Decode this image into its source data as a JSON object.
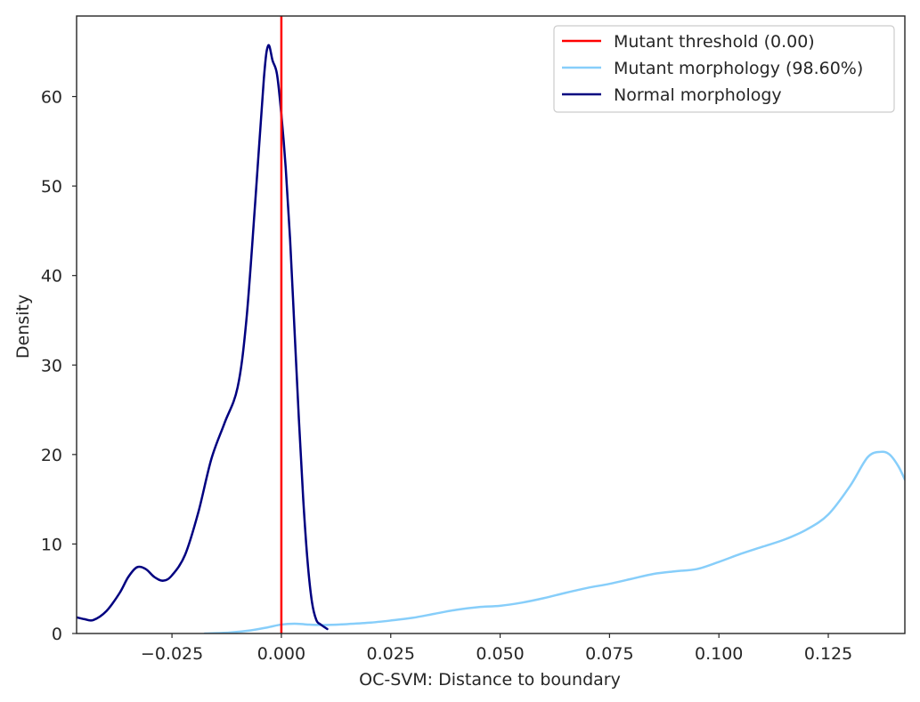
{
  "chart_data": {
    "type": "line",
    "title": "",
    "xlabel": "OC-SVM: Distance to boundary",
    "ylabel": "Density",
    "xlim": [
      -0.0468,
      0.1425
    ],
    "ylim": [
      0,
      69
    ],
    "xticks": [
      -0.025,
      0.0,
      0.025,
      0.05,
      0.075,
      0.1,
      0.125
    ],
    "xtick_labels": [
      "−0.025",
      "0.000",
      "0.025",
      "0.050",
      "0.075",
      "0.100",
      "0.125"
    ],
    "yticks": [
      0,
      10,
      20,
      30,
      40,
      50,
      60
    ],
    "ytick_labels": [
      "0",
      "10",
      "20",
      "30",
      "40",
      "50",
      "60"
    ],
    "grid": false,
    "legend_position": "top-right",
    "threshold": {
      "name": "Mutant threshold (0.00)",
      "x": 0.0,
      "color": "#ff0000"
    },
    "series": [
      {
        "name": "Mutant morphology (98.60%)",
        "color": "#87cefa",
        "x": [
          -0.0175,
          -0.012,
          -0.007,
          -0.003,
          0.0,
          0.003,
          0.006,
          0.01,
          0.015,
          0.02,
          0.025,
          0.03,
          0.035,
          0.04,
          0.045,
          0.05,
          0.055,
          0.06,
          0.065,
          0.07,
          0.075,
          0.08,
          0.085,
          0.09,
          0.095,
          0.1,
          0.105,
          0.11,
          0.115,
          0.12,
          0.125,
          0.13,
          0.134,
          0.137,
          0.139,
          0.141,
          0.1425
        ],
        "y": [
          0.0,
          0.1,
          0.35,
          0.7,
          1.0,
          1.1,
          1.0,
          0.95,
          1.05,
          1.2,
          1.45,
          1.75,
          2.2,
          2.65,
          2.95,
          3.1,
          3.45,
          3.95,
          4.55,
          5.1,
          5.55,
          6.1,
          6.65,
          6.95,
          7.2,
          8.0,
          8.9,
          9.7,
          10.5,
          11.6,
          13.3,
          16.5,
          19.7,
          20.3,
          20.0,
          18.7,
          17.2
        ]
      },
      {
        "name": "Normal morphology",
        "color": "#000080",
        "x": [
          -0.0468,
          -0.045,
          -0.043,
          -0.04,
          -0.037,
          -0.035,
          -0.033,
          -0.031,
          -0.029,
          -0.027,
          -0.025,
          -0.022,
          -0.019,
          -0.016,
          -0.013,
          -0.01,
          -0.008,
          -0.006,
          -0.004,
          -0.003,
          -0.002,
          -0.001,
          0.0,
          0.001,
          0.002,
          0.003,
          0.004,
          0.005,
          0.006,
          0.007,
          0.008,
          0.009,
          0.0105
        ],
        "y": [
          1.8,
          1.6,
          1.5,
          2.5,
          4.5,
          6.3,
          7.4,
          7.2,
          6.3,
          5.9,
          6.5,
          8.8,
          13.5,
          19.5,
          23.5,
          27.5,
          35.0,
          48.0,
          62.0,
          65.7,
          64.0,
          62.5,
          58.0,
          52.0,
          44.0,
          34.0,
          24.0,
          15.0,
          8.0,
          3.5,
          1.5,
          1.0,
          0.5
        ]
      }
    ]
  }
}
